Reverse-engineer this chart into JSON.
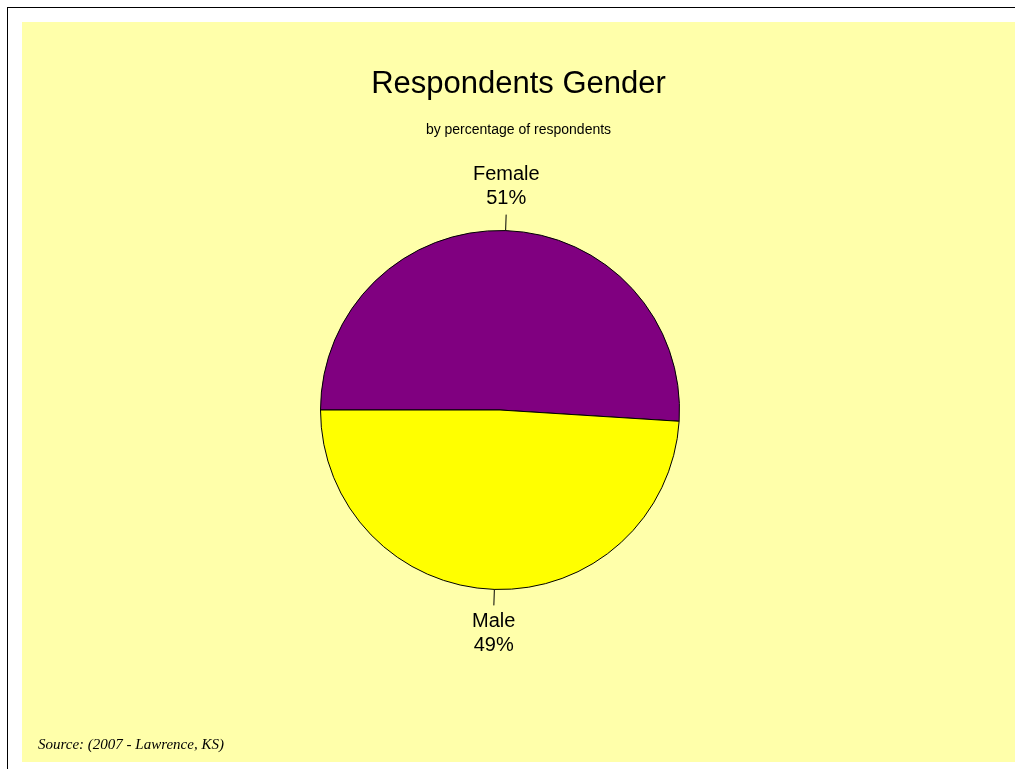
{
  "chart_data": {
    "type": "pie",
    "title": "Respondents Gender",
    "subtitle": "by percentage of respondents",
    "categories": [
      "Female",
      "Male"
    ],
    "values": [
      51,
      49
    ],
    "colors": [
      "#800080",
      "#ffff00"
    ],
    "value_labels": [
      "51%",
      "49%"
    ],
    "annotations": [
      "Source: (2007 - Lawrence, KS)"
    ]
  }
}
